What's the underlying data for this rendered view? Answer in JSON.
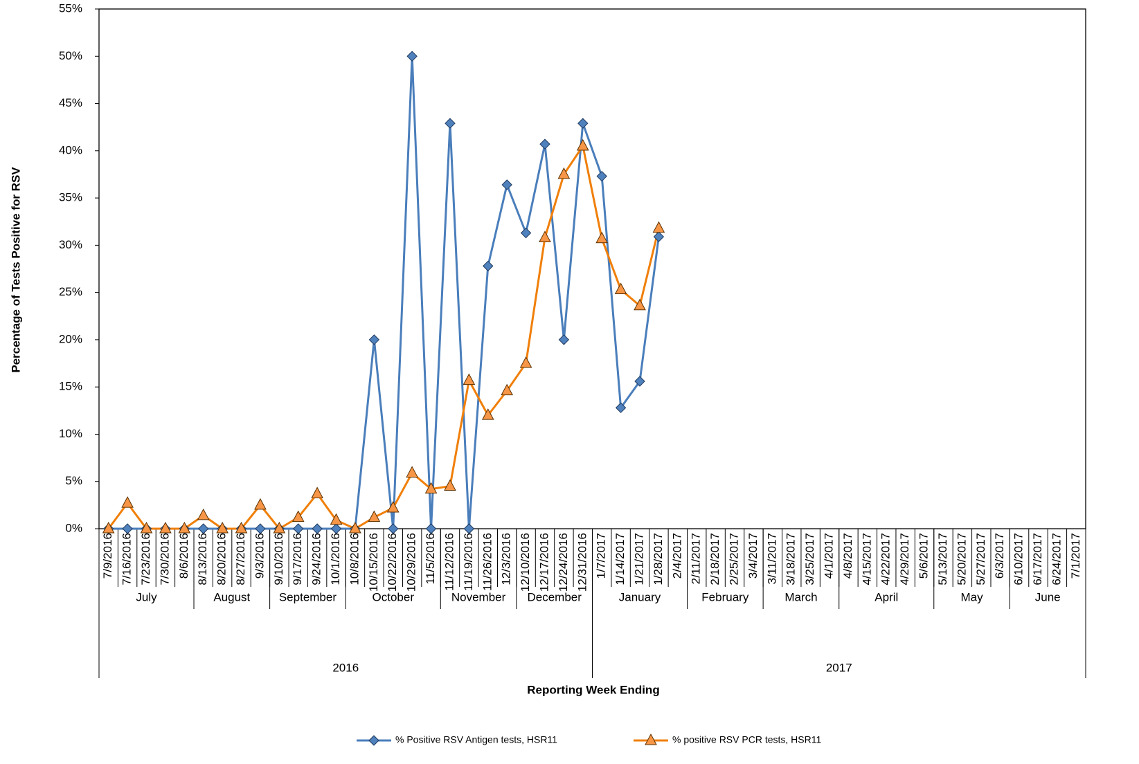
{
  "chart_data": {
    "type": "line",
    "y_label": "Percentage of Tests Positive for RSV",
    "x_label": "Reporting Week Ending",
    "categories": [
      "7/9/2016",
      "7/16/2016",
      "7/23/2016",
      "7/30/2016",
      "8/6/2016",
      "8/13/2016",
      "8/20/2016",
      "8/27/2016",
      "9/3/2016",
      "9/10/2016",
      "9/17/2016",
      "9/24/2016",
      "10/1/2016",
      "10/8/2016",
      "10/15/2016",
      "10/22/2016",
      "10/29/2016",
      "11/5/2016",
      "11/12/2016",
      "11/19/2016",
      "11/26/2016",
      "12/3/2016",
      "12/10/2016",
      "12/17/2016",
      "12/24/2016",
      "12/31/2016",
      "1/7/2017",
      "1/14/2017",
      "1/21/2017",
      "1/28/2017",
      "2/4/2017",
      "2/11/2017",
      "2/18/2017",
      "2/25/2017",
      "3/4/2017",
      "3/11/2017",
      "3/18/2017",
      "3/25/2017",
      "4/1/2017",
      "4/8/2017",
      "4/15/2017",
      "4/22/2017",
      "4/29/2017",
      "5/6/2017",
      "5/13/2017",
      "5/20/2017",
      "5/27/2017",
      "6/3/2017",
      "6/10/2017",
      "6/17/2017",
      "6/24/2017",
      "7/1/2017"
    ],
    "months": [
      "July",
      "August",
      "September",
      "October",
      "November",
      "December",
      "January",
      "February",
      "March",
      "April",
      "May",
      "June"
    ],
    "years": [
      "2016",
      "2017"
    ],
    "series": [
      {
        "name": "% Positive RSV Antigen tests, HSR11",
        "color": "#4a7ebb",
        "marker_color": "#4f81bd",
        "marker": "diamond",
        "values": [
          0,
          0,
          0,
          0,
          0,
          0,
          0,
          0,
          0,
          0,
          0,
          0,
          0,
          0,
          20,
          0,
          50,
          0,
          42.9,
          0,
          27.8,
          36.4,
          31.3,
          40.7,
          20,
          42.9,
          37.3,
          12.8,
          15.6,
          30.9,
          null,
          null,
          null,
          null,
          null,
          null,
          null,
          null,
          null,
          null,
          null,
          null,
          null,
          null,
          null,
          null,
          null,
          null,
          null,
          null,
          null,
          null
        ]
      },
      {
        "name": "% positive RSV PCR tests, HSR11",
        "color": "#f07f09",
        "marker_color": "#f79646",
        "marker": "triangle",
        "values": [
          0,
          2.7,
          0,
          0,
          0,
          1.4,
          0,
          0,
          2.5,
          0,
          1.2,
          3.7,
          0.9,
          0,
          1.2,
          2.2,
          5.9,
          4.2,
          4.5,
          15.7,
          12,
          14.6,
          17.5,
          30.8,
          37.5,
          40.5,
          30.7,
          25.3,
          23.6,
          31.8,
          null,
          null,
          null,
          null,
          null,
          null,
          null,
          null,
          null,
          null,
          null,
          null,
          null,
          null,
          null,
          null,
          null,
          null,
          null,
          null,
          null,
          null
        ]
      }
    ],
    "ylim": [
      0,
      55
    ],
    "yticks": [
      {
        "value": 0,
        "label": "0%"
      },
      {
        "value": 5,
        "label": "5%"
      },
      {
        "value": 10,
        "label": "10%"
      },
      {
        "value": 15,
        "label": "15%"
      },
      {
        "value": 20,
        "label": "20%"
      },
      {
        "value": 25,
        "label": "25%"
      },
      {
        "value": 30,
        "label": "30%"
      },
      {
        "value": 35,
        "label": "35%"
      },
      {
        "value": 40,
        "label": "40%"
      },
      {
        "value": 45,
        "label": "45%"
      },
      {
        "value": 50,
        "label": "50%"
      },
      {
        "value": 55,
        "label": "55%"
      }
    ],
    "grid": false,
    "legend": "bottom"
  }
}
